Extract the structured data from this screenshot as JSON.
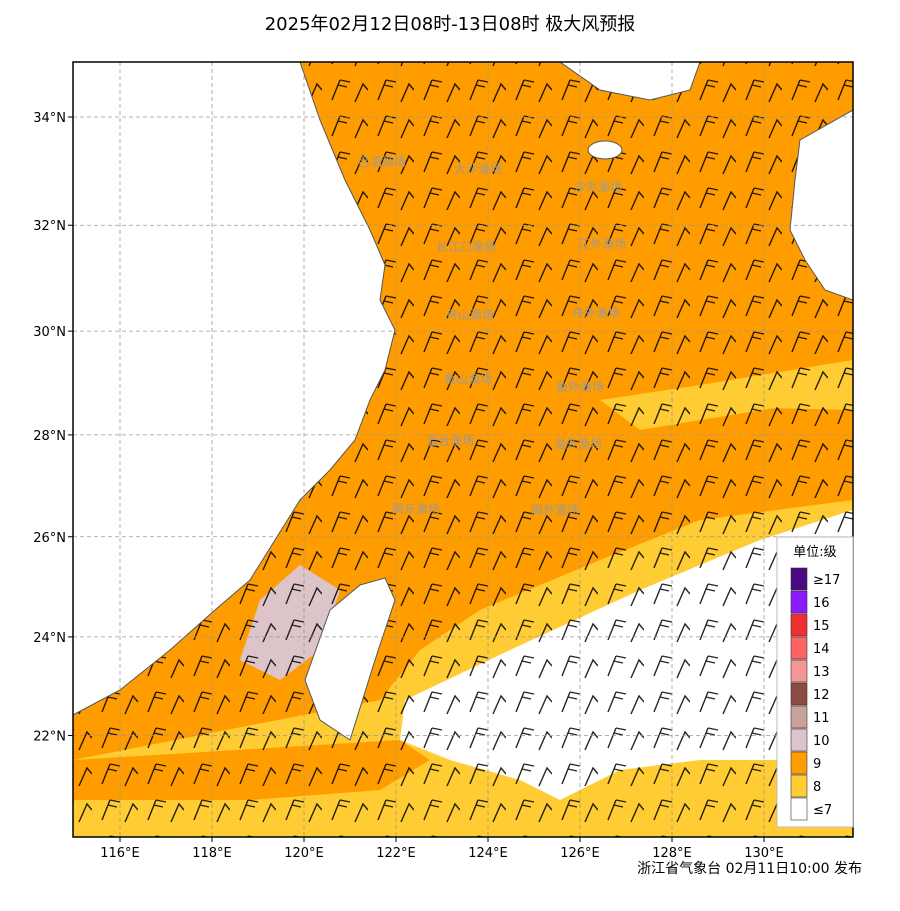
{
  "title": "2025年02月12日08时-13日08时 极大风预报",
  "map": {
    "lon_ticks": [
      {
        "value": 116,
        "label": "116°E"
      },
      {
        "value": 118,
        "label": "118°E"
      },
      {
        "value": 120,
        "label": "120°E"
      },
      {
        "value": 122,
        "label": "122°E"
      },
      {
        "value": 124,
        "label": "124°E"
      },
      {
        "value": 126,
        "label": "126°E"
      },
      {
        "value": 128,
        "label": "128°E"
      },
      {
        "value": 130,
        "label": "130°E"
      }
    ],
    "lat_ticks": [
      {
        "value": 22,
        "label": "22°N"
      },
      {
        "value": 24,
        "label": "24°N"
      },
      {
        "value": 26,
        "label": "26°N"
      },
      {
        "value": 28,
        "label": "28°N"
      },
      {
        "value": 30,
        "label": "30°N"
      },
      {
        "value": 32,
        "label": "32°N"
      },
      {
        "value": 34,
        "label": "34°N"
      }
    ],
    "zones": [
      "吕泗渔场",
      "大沙渔场",
      "沙外渔场",
      "长江口渔场",
      "江外渔场",
      "舟山渔场",
      "舟外渔场",
      "鱼山渔场",
      "鱼外渔场",
      "温台渔场",
      "温外渔场",
      "闽东渔场",
      "闽外渔场"
    ]
  },
  "legend": {
    "title": "单位:级",
    "levels": [
      {
        "label": "≥17",
        "color": "#4b0a82"
      },
      {
        "label": "16",
        "color": "#8a1aff"
      },
      {
        "label": "15",
        "color": "#f03030"
      },
      {
        "label": "14",
        "color": "#ff6464"
      },
      {
        "label": "13",
        "color": "#f49696"
      },
      {
        "label": "12",
        "color": "#8c4a44"
      },
      {
        "label": "11",
        "color": "#c8a09c"
      },
      {
        "label": "10",
        "color": "#dcc4c8"
      },
      {
        "label": "9",
        "color": "#ff9c00"
      },
      {
        "label": "8",
        "color": "#ffcc33"
      },
      {
        "label": "≤7",
        "color": "#ffffff"
      }
    ]
  },
  "footer": "浙江省气象台 02月11日10:00 发布"
}
